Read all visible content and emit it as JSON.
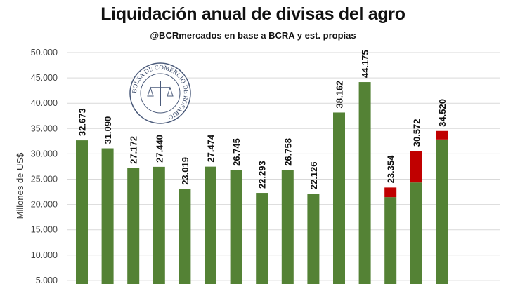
{
  "chart_data": {
    "type": "bar",
    "stacked": true,
    "title": "Liquidación anual de divisas del agro",
    "subtitle": "@BCRmercados en base a BCRA y est. propias",
    "ylabel": "Millones de US$",
    "xlabel": "",
    "ylim": [
      0,
      50000
    ],
    "yticks": [
      "5.000",
      "10.000",
      "15.000",
      "20.000",
      "25.000",
      "30.000",
      "35.000",
      "40.000",
      "45.000",
      "50.000"
    ],
    "grid": true,
    "data_labels": [
      "32.673",
      "31.090",
      "27.172",
      "27.440",
      "23.019",
      "27.474",
      "26.745",
      "22.293",
      "26.758",
      "22.126",
      "38.162",
      "44.175",
      "23.354",
      "30.572",
      "34.520"
    ],
    "series": [
      {
        "color": "#548235",
        "values": [
          32673,
          31090,
          27172,
          27440,
          23019,
          27474,
          26745,
          22293,
          26758,
          22126,
          38162,
          44175,
          21450,
          24350,
          32850
        ]
      },
      {
        "color": "#c00000",
        "values": [
          0,
          0,
          0,
          0,
          0,
          0,
          0,
          0,
          0,
          0,
          0,
          0,
          1904,
          6222,
          1670
        ]
      }
    ],
    "logo_text": "BOLSA DE COMERCIO DE ROSARIO"
  }
}
